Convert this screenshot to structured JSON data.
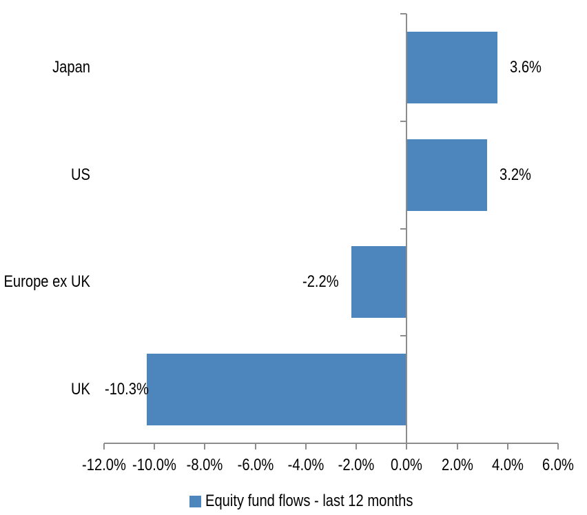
{
  "chart_data": {
    "type": "bar",
    "orientation": "horizontal",
    "title": "",
    "categories": [
      "Japan",
      "US",
      "Europe ex UK",
      "UK"
    ],
    "values": [
      3.6,
      3.2,
      -2.2,
      -10.3
    ],
    "data_labels": [
      "3.6%",
      "3.2%",
      "-2.2%",
      "-10.3%"
    ],
    "series_name": "Equity fund flows - last 12 months",
    "xlabel": "",
    "ylabel": "",
    "xlim": [
      -12,
      6
    ],
    "x_ticks": [
      -12,
      -10,
      -8,
      -6,
      -4,
      -2,
      0,
      2,
      4,
      6
    ],
    "x_tick_labels": [
      "-12.0%",
      "-10.0%",
      "-8.0%",
      "-6.0%",
      "-4.0%",
      "-2.0%",
      "0.0%",
      "2.0%",
      "4.0%",
      "6.0%"
    ],
    "grid": false,
    "legend_position": "bottom",
    "bar_color": "#4C86BC",
    "axis_color": "#8C8C8C",
    "text_color": "#000000",
    "background_color": "#FFFFFF"
  }
}
